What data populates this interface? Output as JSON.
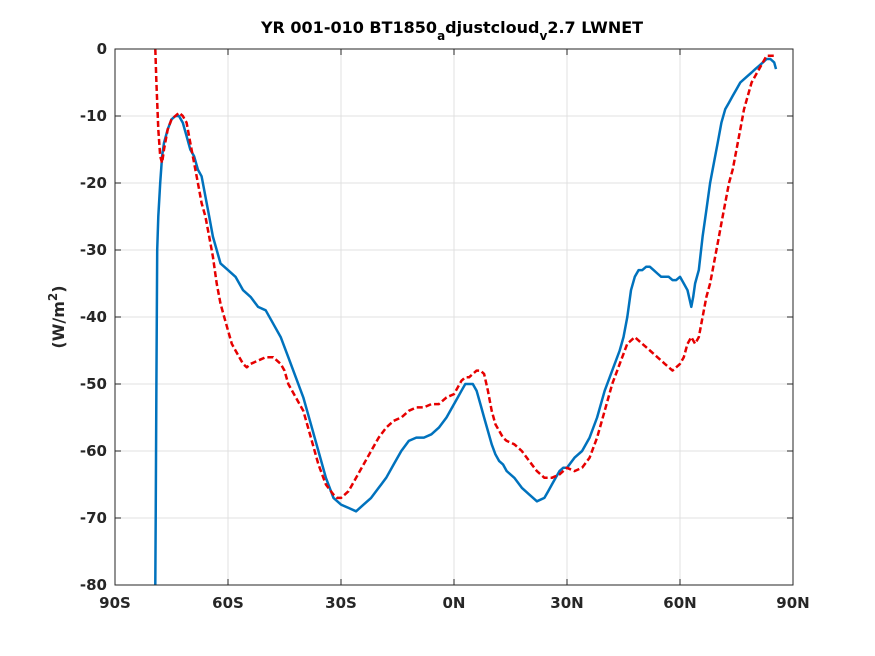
{
  "chart_data": {
    "type": "line",
    "title": {
      "parts": [
        {
          "text": "YR 001-010 BT1850",
          "sub": false
        },
        {
          "text": "a",
          "sub": true
        },
        {
          "text": "djustcloud",
          "sub": false
        },
        {
          "text": "v",
          "sub": true
        },
        {
          "text": "2.7 LWNET",
          "sub": false
        }
      ]
    },
    "ylabel": {
      "prefix": "(W/m",
      "sup": "2",
      "suffix": ")"
    },
    "xlabel": "",
    "xlim": [
      -90,
      90
    ],
    "ylim": [
      -80,
      0
    ],
    "x_ticks": [
      {
        "value": -90,
        "label": "90S"
      },
      {
        "value": -60,
        "label": "60S"
      },
      {
        "value": -30,
        "label": "30S"
      },
      {
        "value": 0,
        "label": "0N"
      },
      {
        "value": 30,
        "label": "30N"
      },
      {
        "value": 60,
        "label": "60N"
      },
      {
        "value": 90,
        "label": "90N"
      }
    ],
    "y_ticks": [
      {
        "value": 0,
        "label": "0"
      },
      {
        "value": -10,
        "label": "-10"
      },
      {
        "value": -20,
        "label": "-20"
      },
      {
        "value": -30,
        "label": "-30"
      },
      {
        "value": -40,
        "label": "-40"
      },
      {
        "value": -50,
        "label": "-50"
      },
      {
        "value": -60,
        "label": "-60"
      },
      {
        "value": -70,
        "label": "-70"
      },
      {
        "value": -80,
        "label": "-80"
      }
    ],
    "grid": true,
    "legend": "none",
    "series": [
      {
        "color": "#0072BD",
        "line_style": "solid",
        "x": [
          -79.3,
          -79.2,
          -79.0,
          -78.8,
          -78.5,
          -78.0,
          -77.5,
          -77.0,
          -76.0,
          -75.0,
          -74.0,
          -73.0,
          -72.0,
          -71.0,
          -70.0,
          -69.0,
          -68.0,
          -67.0,
          -66.0,
          -65.0,
          -64.0,
          -63.0,
          -62.0,
          -60.0,
          -58.0,
          -56.0,
          -54.0,
          -52.0,
          -50.0,
          -48.0,
          -46.0,
          -44.0,
          -42.0,
          -40.0,
          -38.0,
          -36.0,
          -34.0,
          -32.0,
          -30.0,
          -28.0,
          -26.0,
          -24.0,
          -22.0,
          -20.0,
          -18.0,
          -16.0,
          -14.0,
          -12.0,
          -10.0,
          -8.0,
          -6.0,
          -4.0,
          -2.0,
          0.0,
          1.0,
          2.0,
          3.0,
          4.0,
          5.0,
          6.0,
          7.0,
          8.0,
          9.0,
          10.0,
          11.0,
          12.0,
          13.0,
          14.0,
          16.0,
          18.0,
          20.0,
          22.0,
          24.0,
          25.0,
          26.0,
          27.0,
          28.0,
          29.0,
          30.0,
          32.0,
          34.0,
          36.0,
          38.0,
          40.0,
          42.0,
          44.0,
          45.0,
          46.0,
          47.0,
          48.0,
          49.0,
          50.0,
          51.0,
          52.0,
          53.0,
          54.0,
          55.0,
          56.0,
          57.0,
          58.0,
          59.0,
          60.0,
          61.0,
          62.0,
          63.0,
          63.5,
          64.0,
          65.0,
          66.0,
          67.0,
          68.0,
          69.0,
          70.0,
          71.0,
          72.0,
          73.0,
          74.0,
          75.0,
          76.0,
          77.0,
          78.0,
          79.0,
          80.0,
          81.0,
          82.0,
          83.0,
          84.0,
          85.0,
          85.5
        ],
        "y": [
          -80.0,
          -70.0,
          -50.0,
          -30.0,
          -25.0,
          -20.0,
          -16.0,
          -14.0,
          -12.0,
          -10.5,
          -10.0,
          -10.0,
          -11.0,
          -13.0,
          -15.0,
          -16.0,
          -18.0,
          -19.0,
          -22.0,
          -25.0,
          -28.0,
          -30.0,
          -32.0,
          -33.0,
          -34.0,
          -36.0,
          -37.0,
          -38.5,
          -39.0,
          -41.0,
          -43.0,
          -46.0,
          -49.0,
          -52.0,
          -56.0,
          -60.0,
          -64.0,
          -67.0,
          -68.0,
          -68.5,
          -69.0,
          -68.0,
          -67.0,
          -65.5,
          -64.0,
          -62.0,
          -60.0,
          -58.5,
          -58.0,
          -58.0,
          -57.5,
          -56.5,
          -55.0,
          -53.0,
          -52.0,
          -51.0,
          -50.0,
          -50.0,
          -50.0,
          -51.0,
          -53.0,
          -55.0,
          -57.0,
          -59.0,
          -60.5,
          -61.5,
          -62.0,
          -63.0,
          -64.0,
          -65.5,
          -66.5,
          -67.5,
          -67.0,
          -66.0,
          -65.0,
          -64.0,
          -63.0,
          -62.5,
          -62.5,
          -61.0,
          -60.0,
          -58.0,
          -55.0,
          -51.0,
          -48.0,
          -45.0,
          -43.0,
          -40.0,
          -36.0,
          -34.0,
          -33.0,
          -33.0,
          -32.5,
          -32.5,
          -33.0,
          -33.5,
          -34.0,
          -34.0,
          -34.0,
          -34.5,
          -34.5,
          -34.0,
          -35.0,
          -36.0,
          -38.5,
          -37.0,
          -35.0,
          -33.0,
          -28.0,
          -24.0,
          -20.0,
          -17.0,
          -14.0,
          -11.0,
          -9.0,
          -8.0,
          -7.0,
          -6.0,
          -5.0,
          -4.5,
          -4.0,
          -3.5,
          -3.0,
          -2.5,
          -2.0,
          -1.5,
          -1.5,
          -2.0,
          -3.0
        ]
      },
      {
        "color": "#E60000",
        "line_style": "dashed",
        "x": [
          -79.3,
          -79.0,
          -78.5,
          -78.0,
          -77.5,
          -77.0,
          -76.0,
          -75.0,
          -74.0,
          -73.0,
          -72.0,
          -71.0,
          -70.0,
          -69.0,
          -68.0,
          -67.0,
          -66.0,
          -65.0,
          -64.0,
          -63.0,
          -62.0,
          -61.0,
          -60.0,
          -59.0,
          -58.0,
          -57.0,
          -56.0,
          -55.0,
          -54.0,
          -52.0,
          -50.0,
          -48.0,
          -46.0,
          -45.0,
          -44.0,
          -42.0,
          -40.0,
          -38.0,
          -36.0,
          -34.0,
          -32.0,
          -31.0,
          -30.0,
          -29.0,
          -28.0,
          -27.0,
          -26.0,
          -25.0,
          -24.0,
          -22.0,
          -20.0,
          -18.0,
          -16.0,
          -14.0,
          -12.0,
          -10.0,
          -8.0,
          -6.0,
          -4.0,
          -2.0,
          0.0,
          1.0,
          2.0,
          3.0,
          4.0,
          5.0,
          6.0,
          7.0,
          8.0,
          9.0,
          10.0,
          11.0,
          12.0,
          13.0,
          14.0,
          16.0,
          18.0,
          20.0,
          22.0,
          24.0,
          26.0,
          28.0,
          30.0,
          32.0,
          34.0,
          36.0,
          38.0,
          40.0,
          42.0,
          44.0,
          46.0,
          48.0,
          50.0,
          52.0,
          54.0,
          56.0,
          58.0,
          60.0,
          61.0,
          62.0,
          63.0,
          64.0,
          65.0,
          66.0,
          67.0,
          68.0,
          69.0,
          70.0,
          71.0,
          72.0,
          73.0,
          74.0,
          75.0,
          76.0,
          77.0,
          78.0,
          79.0,
          80.0,
          81.0,
          82.0,
          83.0,
          84.0,
          85.0
        ],
        "y": [
          0.0,
          -5.0,
          -12.0,
          -16.0,
          -17.0,
          -15.0,
          -12.0,
          -10.5,
          -10.0,
          -9.5,
          -10.0,
          -11.0,
          -14.0,
          -17.0,
          -20.0,
          -23.0,
          -25.0,
          -28.0,
          -31.0,
          -35.0,
          -38.0,
          -40.0,
          -42.0,
          -44.0,
          -45.0,
          -46.0,
          -47.0,
          -47.5,
          -47.0,
          -46.5,
          -46.0,
          -46.0,
          -47.0,
          -48.0,
          -50.0,
          -52.0,
          -54.0,
          -58.0,
          -62.0,
          -65.0,
          -66.5,
          -67.0,
          -67.0,
          -66.5,
          -66.0,
          -65.0,
          -64.0,
          -63.0,
          -62.0,
          -60.0,
          -58.0,
          -56.5,
          -55.5,
          -55.0,
          -54.0,
          -53.5,
          -53.5,
          -53.0,
          -53.0,
          -52.0,
          -51.5,
          -50.5,
          -49.5,
          -49.0,
          -49.0,
          -48.5,
          -48.0,
          -48.0,
          -48.5,
          -51.0,
          -54.0,
          -56.0,
          -57.0,
          -58.0,
          -58.5,
          -59.0,
          -60.0,
          -61.5,
          -63.0,
          -64.0,
          -64.0,
          -63.5,
          -62.5,
          -63.0,
          -62.5,
          -61.0,
          -58.0,
          -54.0,
          -50.0,
          -47.0,
          -44.0,
          -43.0,
          -44.0,
          -45.0,
          -46.0,
          -47.0,
          -48.0,
          -47.0,
          -46.0,
          -44.0,
          -43.0,
          -44.0,
          -43.0,
          -40.0,
          -37.0,
          -35.0,
          -32.0,
          -29.0,
          -26.0,
          -23.0,
          -20.0,
          -18.0,
          -15.0,
          -12.0,
          -9.0,
          -7.0,
          -5.0,
          -4.0,
          -3.0,
          -2.0,
          -1.0,
          -1.0,
          -1.0
        ]
      }
    ]
  }
}
